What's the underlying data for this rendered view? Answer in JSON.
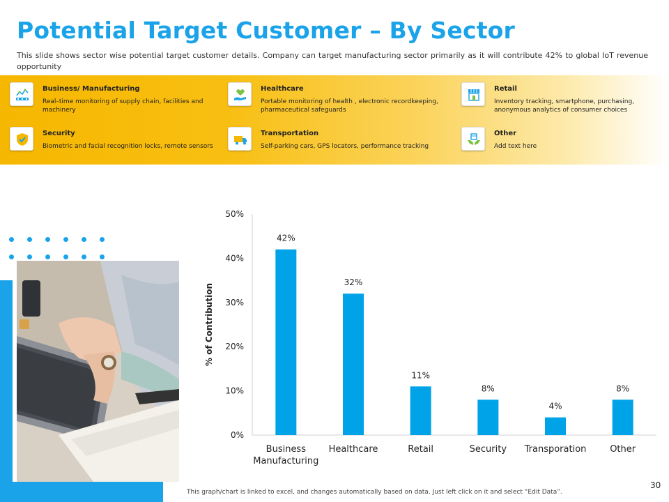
{
  "slide": {
    "title": "Potential Target Customer – By Sector",
    "subtitle": "This slide shows sector wise potential target customer details. Company can target manufacturing  sector primarily as it will contribute  42% to global IoT revenue opportunity",
    "footnote": "This graph/chart is linked to excel, and changes automatically based on data. Just left click on it and select “Edit Data”.",
    "page_number": "30"
  },
  "sectors": [
    {
      "title": "Business/ Manufacturing",
      "description": "Real–time monitoring of supply chain, facilities and machinery",
      "icon": "manufacturing-icon"
    },
    {
      "title": "Healthcare",
      "description": "Portable monitoring of health , electronic recordkeeping, pharmaceutical safeguards",
      "icon": "healthcare-icon"
    },
    {
      "title": "Retail",
      "description": "Inventory tracking, smartphone, purchasing, anonymous analytics of consumer choices",
      "icon": "retail-store-icon"
    },
    {
      "title": "Security",
      "description": "Biometric and facial recognition locks, remote sensors",
      "icon": "security-shield-icon"
    },
    {
      "title": "Transportation",
      "description": "Self-parking cars, GPS locators, performance tracking",
      "icon": "transportation-truck-icon"
    },
    {
      "title": "Other",
      "description": "Add text here",
      "icon": "other-hand-box-icon"
    }
  ],
  "colors": {
    "accent": "#1aa3e8",
    "band_start": "#f6b700",
    "bar": "#00a3e8"
  },
  "chart_data": {
    "type": "bar",
    "categories": [
      "Business\nManufacturing",
      "Healthcare",
      "Retail",
      "Security",
      "Transporation",
      "Other"
    ],
    "values": [
      42,
      32,
      11,
      8,
      4,
      8
    ],
    "data_labels": [
      "42%",
      "32%",
      "11%",
      "8%",
      "4%",
      "8%"
    ],
    "ylabel": "% of Contribution",
    "ylim": [
      0,
      50
    ],
    "yticks": [
      0,
      10,
      20,
      30,
      40,
      50
    ],
    "ytick_labels": [
      "0%",
      "10%",
      "20%",
      "30%",
      "40%",
      "50%"
    ],
    "grid": false,
    "legend": false
  }
}
